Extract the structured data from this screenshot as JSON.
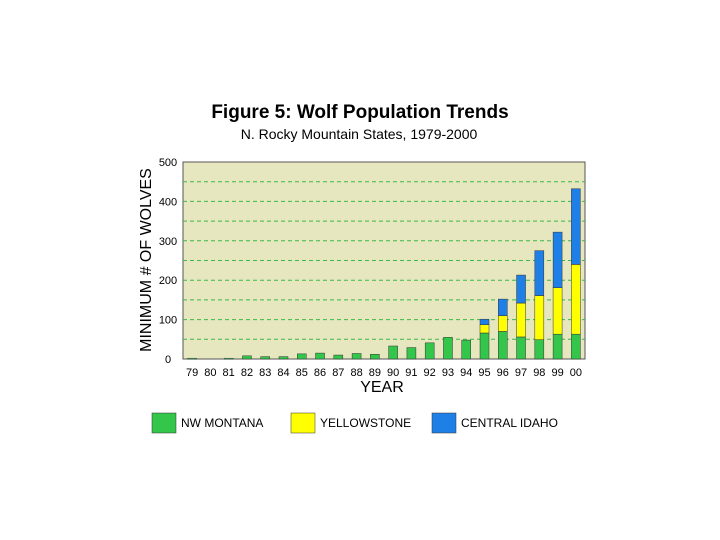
{
  "chart_data": {
    "type": "bar",
    "stacked": true,
    "title": "Figure 5:  Wolf Population Trends",
    "subtitle": "N. Rocky Mountain States, 1979-2000",
    "xlabel": "YEAR",
    "ylabel": "MINIMUM # OF WOLVES",
    "ylim": [
      0,
      500
    ],
    "yticks": [
      0,
      100,
      200,
      300,
      400,
      500
    ],
    "grid": true,
    "background_color": "#e6e6bf",
    "categories": [
      "79",
      "80",
      "81",
      "82",
      "83",
      "84",
      "85",
      "86",
      "87",
      "88",
      "89",
      "90",
      "91",
      "92",
      "93",
      "94",
      "95",
      "96",
      "97",
      "98",
      "99",
      "00"
    ],
    "series": [
      {
        "name": "NW MONTANA",
        "color": "#33c64a",
        "values": [
          2,
          0,
          2,
          8,
          6,
          6,
          13,
          15,
          10,
          14,
          12,
          33,
          29,
          41,
          55,
          48,
          66,
          70,
          56,
          49,
          63,
          63
        ]
      },
      {
        "name": "YELLOWSTONE",
        "color": "#ffff00",
        "values": [
          0,
          0,
          0,
          0,
          0,
          0,
          0,
          0,
          0,
          0,
          0,
          0,
          0,
          0,
          0,
          0,
          21,
          40,
          86,
          112,
          118,
          177
        ]
      },
      {
        "name": "CENTRAL IDAHO",
        "color": "#1e7fe6",
        "values": [
          0,
          0,
          0,
          0,
          0,
          0,
          0,
          0,
          0,
          0,
          0,
          0,
          0,
          0,
          0,
          0,
          14,
          42,
          71,
          114,
          141,
          192
        ]
      }
    ],
    "legend_position": "bottom"
  }
}
